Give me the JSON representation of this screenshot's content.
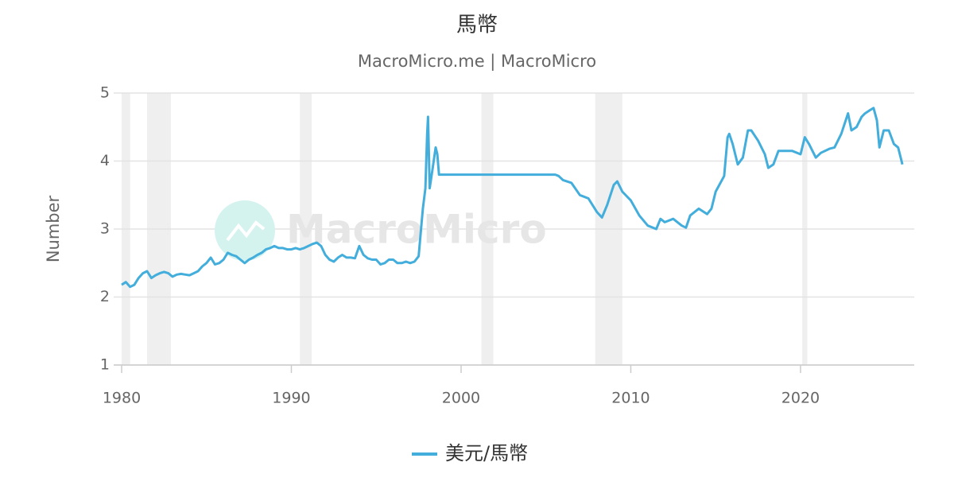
{
  "chart_data": {
    "type": "line",
    "title": "馬幣",
    "subtitle": "MacroMicro.me | MacroMicro",
    "watermark": "MacroMicro",
    "y_label": "Number",
    "xlim": [
      1980,
      2026.7
    ],
    "xticks": [
      1980,
      1990,
      2000,
      2010,
      2020
    ],
    "ylim": [
      1,
      5
    ],
    "yticks": [
      1,
      2,
      3,
      4,
      5
    ],
    "grid": true,
    "legend": "bottom",
    "shaded_ranges": [
      [
        1980.0,
        1980.5
      ],
      [
        1981.5,
        1982.9
      ],
      [
        1990.5,
        1991.2
      ],
      [
        2001.2,
        2001.9
      ],
      [
        2007.9,
        2009.5
      ],
      [
        2020.1,
        2020.4
      ]
    ],
    "x": [
      1980.0,
      1980.25,
      1980.5,
      1980.75,
      1981.0,
      1981.25,
      1981.5,
      1981.75,
      1982.0,
      1982.25,
      1982.5,
      1982.75,
      1983.0,
      1983.25,
      1983.5,
      1983.75,
      1984.0,
      1984.25,
      1984.5,
      1984.75,
      1985.0,
      1985.25,
      1985.5,
      1985.75,
      1986.0,
      1986.25,
      1986.5,
      1986.75,
      1987.0,
      1987.25,
      1987.5,
      1987.75,
      1988.0,
      1988.25,
      1988.5,
      1988.75,
      1989.0,
      1989.25,
      1989.5,
      1989.75,
      1990.0,
      1990.25,
      1990.5,
      1990.75,
      1991.0,
      1991.25,
      1991.5,
      1991.75,
      1992.0,
      1992.25,
      1992.5,
      1992.75,
      1993.0,
      1993.25,
      1993.5,
      1993.75,
      1994.0,
      1994.25,
      1994.5,
      1994.75,
      1995.0,
      1995.25,
      1995.5,
      1995.75,
      1996.0,
      1996.25,
      1996.5,
      1996.75,
      1997.0,
      1997.25,
      1997.5,
      1997.75,
      1997.9,
      1998.0,
      1998.05,
      1998.15,
      1998.3,
      1998.5,
      1998.6,
      1998.7,
      1999,
      2000,
      2001,
      2002,
      2003,
      2004,
      2005,
      2005.55,
      2005.75,
      2006,
      2006.5,
      2007,
      2007.5,
      2008,
      2008.3,
      2008.6,
      2009,
      2009.2,
      2009.5,
      2010,
      2010.5,
      2011,
      2011.5,
      2011.75,
      2012,
      2012.5,
      2013,
      2013.25,
      2013.5,
      2014,
      2014.5,
      2014.75,
      2015,
      2015.5,
      2015.7,
      2015.8,
      2016,
      2016.3,
      2016.6,
      2016.9,
      2017.1,
      2017.5,
      2017.9,
      2018.1,
      2018.4,
      2018.7,
      2019,
      2019.5,
      2020,
      2020.25,
      2020.5,
      2020.9,
      2021.2,
      2021.7,
      2022,
      2022.4,
      2022.8,
      2023,
      2023.3,
      2023.6,
      2023.8,
      2024.1,
      2024.3,
      2024.5,
      2024.65,
      2024.9,
      2025.2,
      2025.5,
      2025.75,
      2026
    ],
    "series": [
      {
        "name": "美元/馬幣",
        "color": "#43aedb",
        "values": [
          2.18,
          2.22,
          2.15,
          2.18,
          2.28,
          2.35,
          2.38,
          2.28,
          2.32,
          2.35,
          2.37,
          2.35,
          2.3,
          2.33,
          2.34,
          2.33,
          2.32,
          2.35,
          2.38,
          2.45,
          2.5,
          2.58,
          2.48,
          2.5,
          2.55,
          2.65,
          2.62,
          2.6,
          2.55,
          2.5,
          2.55,
          2.58,
          2.62,
          2.65,
          2.7,
          2.72,
          2.75,
          2.72,
          2.72,
          2.7,
          2.7,
          2.72,
          2.7,
          2.72,
          2.75,
          2.78,
          2.8,
          2.75,
          2.62,
          2.55,
          2.52,
          2.58,
          2.62,
          2.58,
          2.58,
          2.57,
          2.75,
          2.62,
          2.57,
          2.55,
          2.55,
          2.48,
          2.5,
          2.55,
          2.55,
          2.5,
          2.5,
          2.52,
          2.5,
          2.52,
          2.6,
          3.3,
          3.6,
          4.4,
          4.65,
          3.6,
          3.85,
          4.2,
          4.1,
          3.8,
          3.8,
          3.8,
          3.8,
          3.8,
          3.8,
          3.8,
          3.8,
          3.8,
          3.78,
          3.72,
          3.68,
          3.5,
          3.45,
          3.25,
          3.17,
          3.35,
          3.65,
          3.7,
          3.55,
          3.42,
          3.2,
          3.05,
          3.0,
          3.15,
          3.1,
          3.15,
          3.05,
          3.02,
          3.2,
          3.3,
          3.22,
          3.3,
          3.55,
          3.78,
          4.35,
          4.4,
          4.25,
          3.95,
          4.05,
          4.45,
          4.45,
          4.3,
          4.1,
          3.9,
          3.95,
          4.15,
          4.15,
          4.15,
          4.1,
          4.35,
          4.25,
          4.05,
          4.12,
          4.18,
          4.2,
          4.4,
          4.7,
          4.45,
          4.5,
          4.65,
          4.7,
          4.75,
          4.78,
          4.6,
          4.2,
          4.45,
          4.45,
          4.25,
          4.2,
          3.95
        ]
      }
    ]
  }
}
